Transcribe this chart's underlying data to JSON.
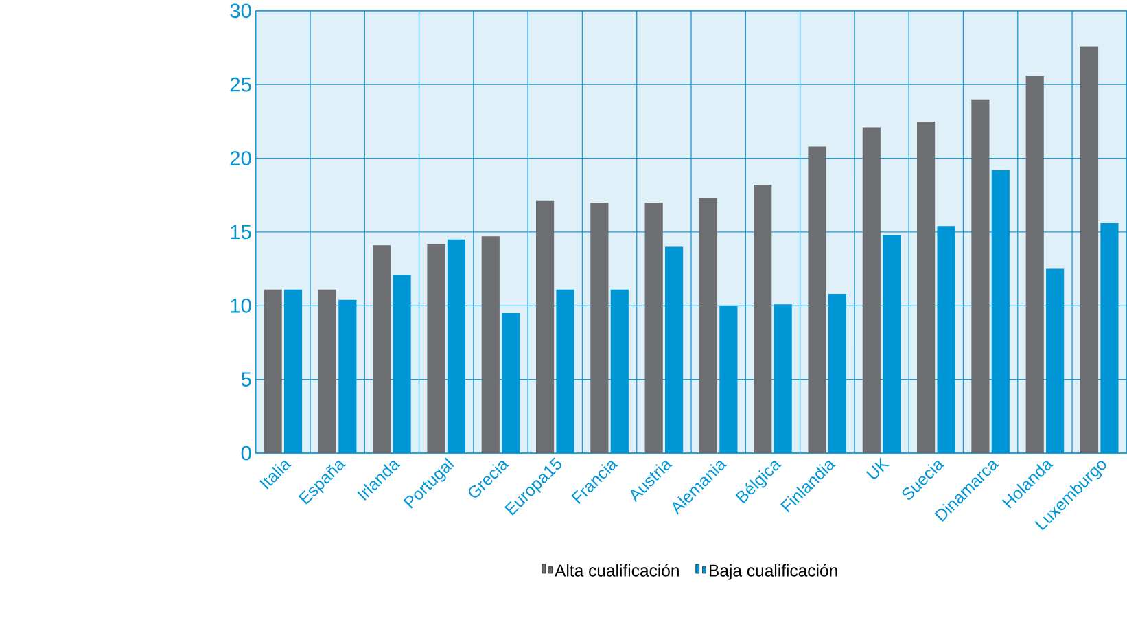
{
  "chart_data": {
    "type": "bar",
    "categories": [
      "Italia",
      "España",
      "Irlanda",
      "Portugal",
      "Grecia",
      "Europa15",
      "Francia",
      "Austria",
      "Alemania",
      "Bélgica",
      "Finlandia",
      "UK",
      "Suecia",
      "Dinamarca",
      "Holanda",
      "Luxemburgo"
    ],
    "series": [
      {
        "name": "Alta cualificación",
        "color": "#6d6e71",
        "values": [
          11.1,
          11.1,
          14.1,
          14.2,
          14.7,
          17.1,
          17.0,
          17.0,
          17.3,
          18.2,
          20.8,
          22.1,
          22.5,
          24.0,
          25.6,
          27.6
        ]
      },
      {
        "name": "Baja cualificación",
        "color": "#0096d6",
        "values": [
          11.1,
          10.4,
          12.1,
          14.5,
          9.5,
          11.1,
          11.1,
          14.0,
          10.0,
          10.1,
          10.8,
          14.8,
          15.4,
          19.2,
          12.5,
          15.6
        ]
      }
    ],
    "ylim": [
      0,
      30
    ],
    "yticks": [
      0,
      5,
      10,
      15,
      20,
      25,
      30
    ],
    "grid": true,
    "legend": "bottom"
  }
}
